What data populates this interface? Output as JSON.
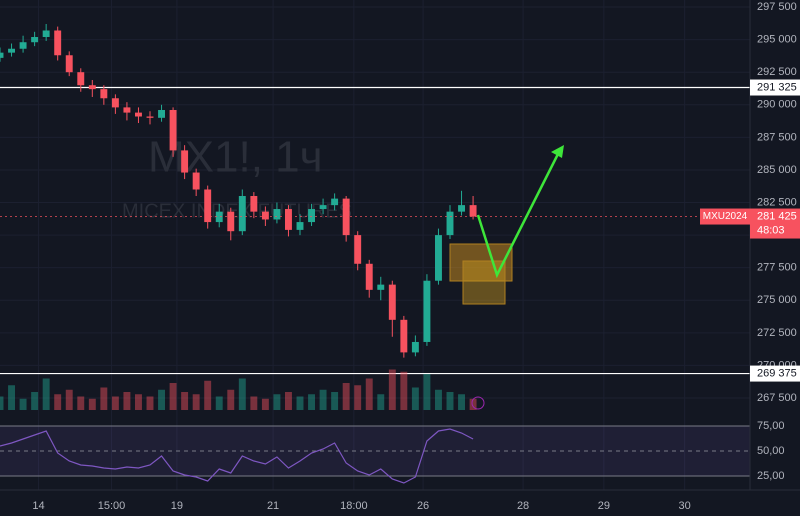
{
  "chart_data": {
    "type": "candlestick",
    "watermark": "MX1!, 1ч",
    "watermark_subtitle": "MICEX INDEX FUTURES",
    "x": [
      0,
      3,
      6,
      9,
      12,
      15,
      18,
      21,
      24,
      27,
      30,
      33,
      36,
      39,
      42,
      45,
      48,
      51,
      54,
      57,
      60,
      63,
      66,
      69,
      72,
      75,
      78,
      81,
      84,
      87,
      90,
      93,
      96,
      99,
      102,
      105,
      108,
      111,
      114,
      117,
      120,
      123
    ],
    "open": [
      293600,
      294000,
      294300,
      294800,
      295200,
      295700,
      293800,
      292500,
      291500,
      291200,
      290500,
      289800,
      289400,
      289100,
      289000,
      289600,
      286500,
      284800,
      283500,
      281000,
      281800,
      280300,
      283000,
      281800,
      281200,
      282000,
      280400,
      281000,
      282000,
      282300,
      282800,
      280000,
      277800,
      275800,
      276200,
      273500,
      271000,
      271800,
      276500,
      280000,
      281800,
      282300
    ],
    "high": [
      294400,
      294700,
      295300,
      295600,
      296200,
      296000,
      294100,
      292800,
      291900,
      291500,
      290800,
      290200,
      289800,
      289500,
      290000,
      289800,
      286900,
      285100,
      283800,
      282400,
      282100,
      283500,
      283300,
      282200,
      282500,
      282300,
      281600,
      282400,
      282800,
      283200,
      283000,
      280300,
      278100,
      276800,
      276500,
      273800,
      272300,
      277000,
      280500,
      282300,
      283400,
      283000
    ],
    "low": [
      293300,
      293700,
      294000,
      294500,
      294900,
      293400,
      292200,
      291000,
      290600,
      290000,
      289300,
      288800,
      288600,
      288500,
      288700,
      286000,
      284300,
      283000,
      280500,
      280600,
      279600,
      280000,
      281300,
      280700,
      280900,
      279900,
      280000,
      280700,
      281600,
      281900,
      279500,
      277300,
      275200,
      275000,
      272200,
      270600,
      270700,
      271500,
      276200,
      279700,
      281500,
      281200
    ],
    "close": [
      294000,
      294300,
      294800,
      295200,
      295700,
      293800,
      292500,
      291500,
      291200,
      290500,
      289800,
      289400,
      289100,
      289000,
      289600,
      286500,
      284800,
      283500,
      281000,
      281800,
      280300,
      283000,
      281800,
      281200,
      282000,
      280400,
      281000,
      282000,
      282300,
      282800,
      280000,
      277800,
      275800,
      276200,
      273500,
      271000,
      271800,
      276500,
      280000,
      281800,
      282300,
      281425
    ],
    "volumes": [
      30,
      55,
      25,
      40,
      70,
      35,
      45,
      30,
      25,
      50,
      30,
      40,
      35,
      30,
      45,
      60,
      40,
      35,
      65,
      30,
      45,
      70,
      30,
      25,
      35,
      40,
      30,
      35,
      45,
      40,
      60,
      55,
      70,
      35,
      90,
      85,
      50,
      80,
      45,
      40,
      35,
      25
    ],
    "vlim": [
      0,
      100
    ],
    "rsi": [
      55,
      58,
      62,
      66,
      70,
      48,
      40,
      36,
      35,
      33,
      32,
      34,
      33,
      36,
      45,
      30,
      26,
      24,
      20,
      32,
      28,
      45,
      40,
      37,
      44,
      33,
      40,
      48,
      52,
      58,
      38,
      30,
      26,
      32,
      22,
      18,
      24,
      60,
      70,
      72,
      68,
      62
    ],
    "rsi_ylim": [
      11,
      83
    ],
    "rsi_yticks": [
      {
        "value": 75,
        "label": "75,00"
      },
      {
        "value": 50,
        "label": "50,00"
      },
      {
        "value": 25,
        "label": "25,00"
      }
    ],
    "up_color": "#22ab94",
    "down_color": "#f7525f",
    "rsi_color": "#7e57c2",
    "xlim": [
      0,
      195
    ],
    "xticks": [
      {
        "value": 10,
        "label": "14"
      },
      {
        "value": 29,
        "label": "15:00"
      },
      {
        "value": 46,
        "label": "19"
      },
      {
        "value": 71,
        "label": "21"
      },
      {
        "value": 92,
        "label": "18:00"
      },
      {
        "value": 110,
        "label": "26"
      },
      {
        "value": 136,
        "label": "28"
      },
      {
        "value": 157,
        "label": "29"
      },
      {
        "value": 178,
        "label": "30"
      }
    ],
    "ylim": [
      266580,
      298040
    ],
    "yticks": [
      {
        "value": 297500,
        "label": "297 500"
      },
      {
        "value": 295000,
        "label": "295 000"
      },
      {
        "value": 292500,
        "label": "292 500"
      },
      {
        "value": 290000,
        "label": "290 000"
      },
      {
        "value": 287500,
        "label": "287 500"
      },
      {
        "value": 285000,
        "label": "285 000"
      },
      {
        "value": 282500,
        "label": "282 500"
      },
      {
        "value": 280000,
        "label": "280 000"
      },
      {
        "value": 277500,
        "label": "277 500"
      },
      {
        "value": 275000,
        "label": "275 000"
      },
      {
        "value": 272500,
        "label": "272 500"
      },
      {
        "value": 270000,
        "label": "270 000"
      },
      {
        "value": 267500,
        "label": "267 500"
      }
    ],
    "hlines": [
      {
        "value": 291325,
        "label": "291 325"
      },
      {
        "value": 269375,
        "label": "269 375"
      }
    ],
    "last_price": {
      "value": 281425,
      "label": "281 425",
      "symbol": "MXU2024",
      "countdown": "48:03"
    },
    "grid": true
  }
}
